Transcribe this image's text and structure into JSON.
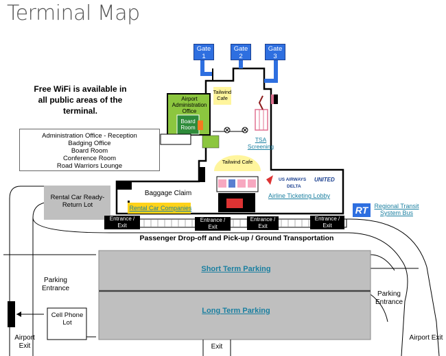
{
  "title": "Terminal Map",
  "wifi_note": "Free WiFi is available in all public areas of the terminal.",
  "admin_box": {
    "lines": [
      "Administration Office - Reception",
      "Badging Office",
      "Board Room",
      "Conference Room",
      "Road Warriors Lounge"
    ]
  },
  "gates": [
    {
      "label": "Gate",
      "number": "1"
    },
    {
      "label": "Gate",
      "number": "2"
    },
    {
      "label": "Gate",
      "number": "3"
    }
  ],
  "rooms": {
    "airport_admin": "Airport Administration Office",
    "board_room": "Board Room",
    "tailwind_cafe_upper": "Tailwind Cafe",
    "tailwind_cafe_lower": "Tailwind Cafe",
    "baggage_claim": "Baggage Claim",
    "rental_car_lot": "Rental Car Ready-Return Lot",
    "cell_phone_lot": "Cell Phone Lot"
  },
  "links": {
    "tsa_screening": "TSA Screening",
    "rental_car_companies": "Rental Car Companies",
    "airline_ticketing": "Airline Ticketing Lobby",
    "regional_transit": "Regional Transit System Bus",
    "short_term_parking": "Short Term Parking",
    "long_term_parking": "Long Term Parking"
  },
  "airlines": [
    "US AIRWAYS",
    "UNITED",
    "DELTA"
  ],
  "transit_logo": "RT",
  "entrances": [
    "Entrance / Exit",
    "Entrance / Exit",
    "Entrance / Exit",
    "Entrance / Exit"
  ],
  "drop_off": "Passenger Drop-off and Pick-up / Ground Transportation",
  "parking_entrance_left": "Parking Entrance",
  "parking_entrance_right": "Parking Entrance",
  "airport_exit_left": "Airport Exit",
  "airport_exit_right": "Airport Exit",
  "exit_bottom": "Exit",
  "colors": {
    "gate_blue": "#2e6fe0",
    "admin_green": "#8cc63f",
    "board_room_green": "#2e8b3a",
    "cafe_yellow": "#fff59d",
    "rental_yellow": "#ffd21a",
    "parking_gray": "#bfbfbf",
    "link_teal": "#1a7fa0"
  }
}
